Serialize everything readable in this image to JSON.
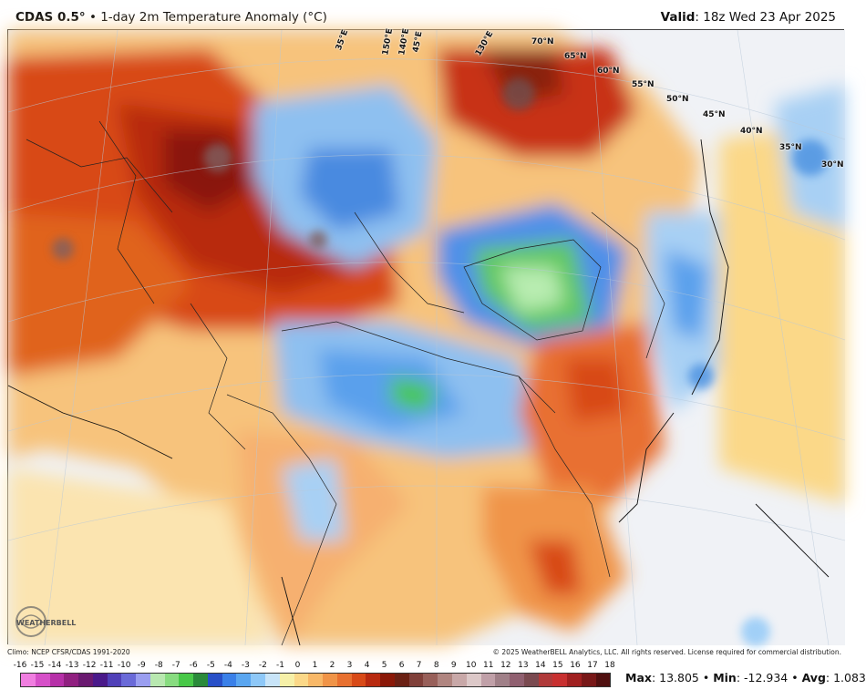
{
  "header": {
    "product": "CDAS 0.5",
    "degree": "°",
    "subtitle": "• 1-day 2m Temperature Anomaly (°C)",
    "valid_label": "Valid",
    "valid_value": ": 18z Wed 23 Apr 2025"
  },
  "map": {
    "lat_labels": [
      "70°N",
      "65°N",
      "60°N",
      "55°N",
      "50°N",
      "45°N",
      "40°N",
      "35°N",
      "30°N"
    ],
    "lon_labels": [
      "35°E",
      "150°E",
      "140°E",
      "45°E",
      "130°E"
    ]
  },
  "footer": {
    "climo": "Climo: NCEP CFSR/CDAS 1991-2020",
    "copyright": "© 2025 WeatherBELL Analytics, LLC. All rights reserved. License required for commercial distribution."
  },
  "colorbar": {
    "ticks": [
      "-16",
      "-15",
      "-14",
      "-13",
      "-12",
      "-11",
      "-10",
      "-9",
      "-8",
      "-7",
      "-6",
      "-5",
      "-4",
      "-3",
      "-2",
      "-1",
      "0",
      "1",
      "2",
      "3",
      "4",
      "5",
      "6",
      "7",
      "8",
      "9",
      "10",
      "11",
      "12",
      "13",
      "14",
      "15",
      "16",
      "17",
      "18"
    ],
    "colors": [
      "#f07ee0",
      "#d650c8",
      "#b630a8",
      "#902080",
      "#6a1a70",
      "#4a1a8a",
      "#5040b8",
      "#6a6ad8",
      "#9a9ef0",
      "#b8e8b0",
      "#88dc80",
      "#48c848",
      "#2a8a3a",
      "#2850c8",
      "#3a80e8",
      "#5aa6f0",
      "#8ec8f8",
      "#c8e4f8",
      "#f6f0a8",
      "#fbd888",
      "#f8b868",
      "#f09448",
      "#e87030",
      "#d84a18",
      "#b82a10",
      "#8a1808",
      "#6a2014",
      "#80403a",
      "#98605a",
      "#b08580",
      "#c8a8a8",
      "#dcc8c8",
      "#c0a0a8",
      "#a08088",
      "#906070",
      "#7a4a50",
      "#b03a3a",
      "#c83030",
      "#a02020",
      "#781818",
      "#501010"
    ]
  },
  "stats": {
    "max_label": "Max",
    "max_value": ": 13.805 • ",
    "min_label": "Min",
    "min_value": ": -12.934 • ",
    "avg_label": "Avg",
    "avg_value": ": 1.083"
  },
  "logo": {
    "text": "WEATHERBELL"
  },
  "icons": {
    "logo": "weatherbell-swirl-icon"
  }
}
